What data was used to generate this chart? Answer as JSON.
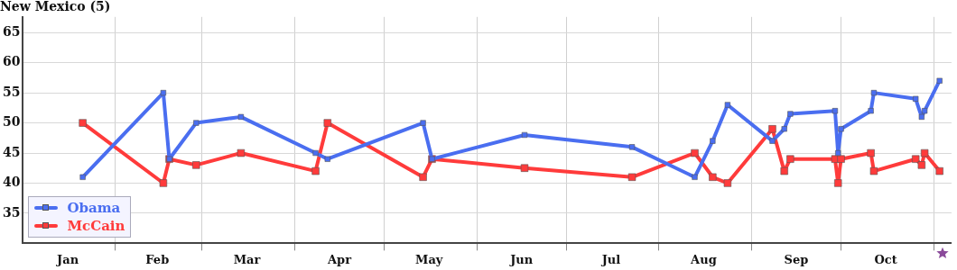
{
  "chart_data": {
    "type": "line",
    "title": "New Mexico (5)",
    "x": [
      "--01-21",
      "--02-17",
      "--02-19",
      "--02-28",
      "--03-14",
      "--04-08",
      "--04-12",
      "--05-14",
      "--05-17",
      "--06-17",
      "--07-23",
      "--08-13",
      "--08-19",
      "--08-24",
      "--09-08",
      "--09-12",
      "--09-14",
      "--09-29",
      "--09-30",
      "--10-01",
      "--10-11",
      "--10-12",
      "--10-26",
      "--10-28",
      "--10-29",
      "--11-03"
    ],
    "series": [
      {
        "name": "Obama",
        "color": "#4a6ef0",
        "values": [
          41,
          55,
          44,
          50,
          51,
          45,
          44,
          50,
          44,
          48,
          46,
          41,
          47,
          53,
          47,
          49,
          51.5,
          52,
          45,
          49,
          52,
          55,
          54,
          51,
          52,
          57
        ]
      },
      {
        "name": "McCain",
        "color": "#ff3b3b",
        "values": [
          50,
          40,
          44,
          43,
          45,
          42,
          50,
          41,
          44,
          42.5,
          41,
          45,
          41,
          40,
          49,
          42,
          44,
          44,
          40,
          44,
          45,
          42,
          44,
          43,
          45,
          42
        ]
      }
    ],
    "xlim": [
      "--01-01",
      "--11-07"
    ],
    "xticks": [
      {
        "value": "--01-16",
        "label": "Jan"
      },
      {
        "value": "--02-01",
        "label": null
      },
      {
        "value": "--02-15",
        "label": "Feb"
      },
      {
        "value": "--03-01",
        "label": null
      },
      {
        "value": "--03-16",
        "label": "Mar"
      },
      {
        "value": "--04-01",
        "label": null
      },
      {
        "value": "--04-16",
        "label": "Apr"
      },
      {
        "value": "--05-01",
        "label": null
      },
      {
        "value": "--05-16",
        "label": "May"
      },
      {
        "value": "--06-01",
        "label": null
      },
      {
        "value": "--06-16",
        "label": "Jun"
      },
      {
        "value": "--07-01",
        "label": null
      },
      {
        "value": "--07-16",
        "label": "Jul"
      },
      {
        "value": "--08-01",
        "label": null
      },
      {
        "value": "--08-16",
        "label": "Aug"
      },
      {
        "value": "--09-01",
        "label": null
      },
      {
        "value": "--09-16",
        "label": "Sep"
      },
      {
        "value": "--10-01",
        "label": null
      },
      {
        "value": "--10-16",
        "label": "Oct"
      },
      {
        "value": "--11-01",
        "label": null
      }
    ],
    "ylim": [
      30,
      67.6
    ],
    "yticks": [
      35,
      40,
      45,
      50,
      55,
      60,
      65
    ],
    "grid": true,
    "legend": "bottom left",
    "marker": "square",
    "line_style": "solid"
  }
}
